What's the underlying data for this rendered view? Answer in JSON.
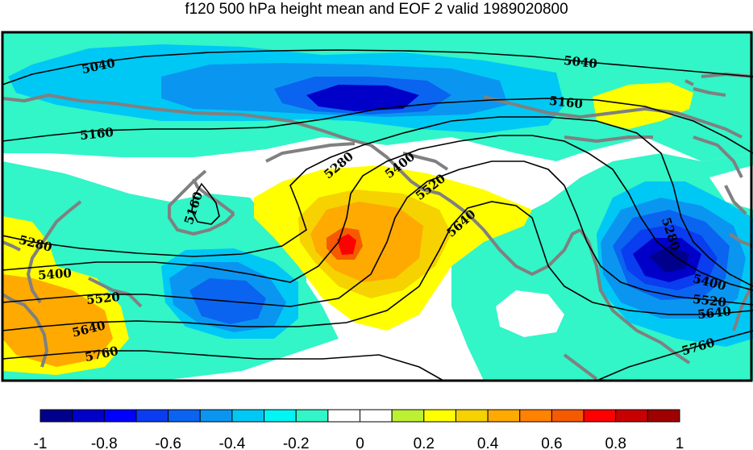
{
  "title": "f120 500 hPa height mean and EOF 2 valid 1989020800",
  "contour_labels": [
    "5040",
    "5040",
    "5160",
    "5160",
    "5160",
    "5280",
    "5280",
    "5280",
    "5400",
    "5400",
    "5400",
    "5520",
    "5520",
    "5520",
    "5640",
    "5640",
    "5640",
    "5760",
    "5760"
  ],
  "colorbar": {
    "ticks": [
      "-1",
      "-0.8",
      "-0.6",
      "-0.4",
      "-0.2",
      "0",
      "0.2",
      "0.4",
      "0.6",
      "0.8",
      "1"
    ],
    "colors": [
      "#00008c",
      "#0000c8",
      "#0000ff",
      "#0a3cf0",
      "#0a64f0",
      "#0a96f0",
      "#00c8f5",
      "#00f5f5",
      "#32f5c8",
      "#ffffff",
      "#ffffff",
      "#bef032",
      "#ffff00",
      "#f5d200",
      "#ffaa00",
      "#ff8200",
      "#f55a00",
      "#ff0000",
      "#c80000",
      "#a00000"
    ]
  },
  "colors": {
    "frame": "#000000",
    "coast": "#808080",
    "contour": "#000000"
  }
}
